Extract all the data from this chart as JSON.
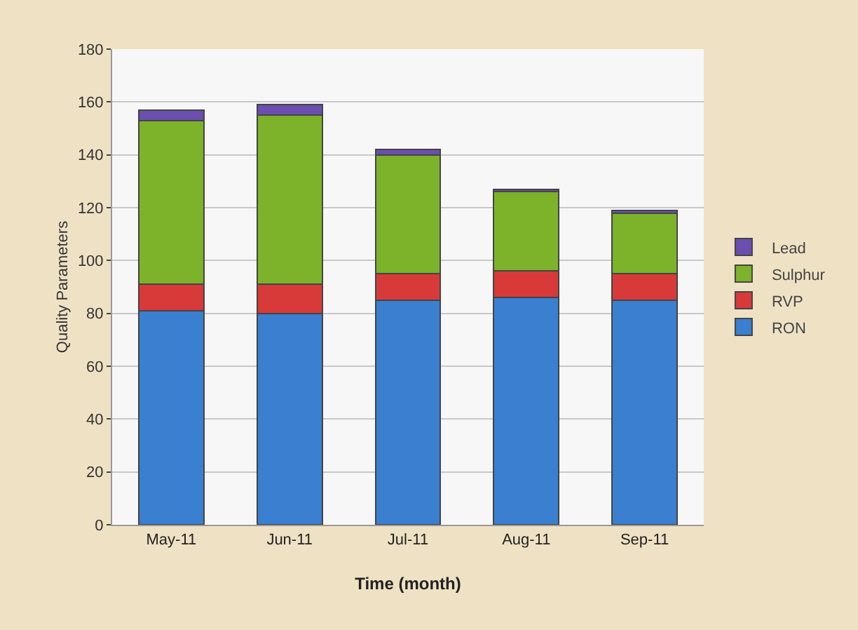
{
  "chart_data": {
    "type": "bar",
    "stacked": true,
    "xlabel": "Time (month)",
    "ylabel": "Quality Parameters",
    "categories": [
      "May-11",
      "Jun-11",
      "Jul-11",
      "Aug-11",
      "Sep-11"
    ],
    "series": [
      {
        "name": "RON",
        "color": "#3a7fd0",
        "values": [
          81,
          80,
          85,
          86,
          85
        ]
      },
      {
        "name": "RVP",
        "color": "#d83a3a",
        "values": [
          10,
          11,
          10,
          10,
          10
        ]
      },
      {
        "name": "Sulphur",
        "color": "#7cb32a",
        "values": [
          62,
          64,
          45,
          30,
          23
        ]
      },
      {
        "name": "Lead",
        "color": "#6a4fb0",
        "values": [
          4,
          4,
          2,
          1,
          1
        ]
      }
    ],
    "ylim": [
      0,
      180
    ],
    "yticks": [
      0,
      20,
      40,
      60,
      80,
      100,
      120,
      140,
      160,
      180
    ],
    "grid": "y",
    "legend": "right"
  }
}
